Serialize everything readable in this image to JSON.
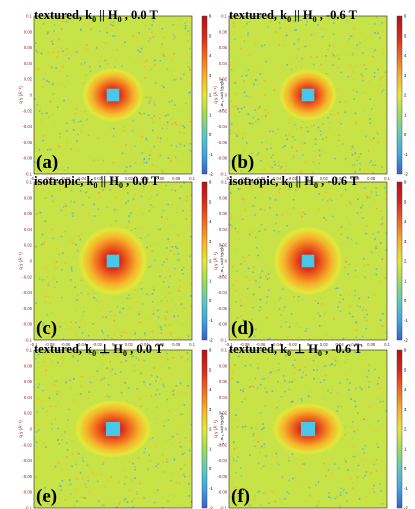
{
  "chart_data": [
    {
      "type": "heatmap",
      "panel_label": "(a)",
      "title": {
        "prefix": "textured, k",
        "sub": "0",
        "relation": "||",
        "field": "H",
        "field_sub": "0",
        "suffix": ", 0.0 T"
      },
      "xlabel": "q x (Å⁻¹)",
      "ylabel": "q y (Å⁻¹)",
      "colorbar_label": "ln(Σ/Ω) (cm⁻¹ sr⁻¹)",
      "x_ticks": [
        "-0.1",
        "-0.08",
        "-0.06",
        "-0.04",
        "-0.02",
        "0",
        "0.02",
        "0.04",
        "0.06",
        "0.08",
        "0.1"
      ],
      "y_ticks": [
        "0.1",
        "0.08",
        "0.06",
        "0.04",
        "0.02",
        "0",
        "-0.02",
        "-0.04",
        "-0.06",
        "-0.08",
        "-0.1"
      ],
      "colorbar_ticks": [
        "6",
        "5",
        "4",
        "3",
        "2",
        "1",
        "0",
        "-1",
        "-2"
      ],
      "xlim": [
        -0.1,
        0.1
      ],
      "ylim": [
        -0.1,
        0.1
      ],
      "clim": [
        -2,
        6
      ],
      "peak_half_width": [
        0.032,
        0.028
      ],
      "beamstop_half_width": 0.008
    },
    {
      "type": "heatmap",
      "panel_label": "(b)",
      "title": {
        "prefix": "textured, k",
        "sub": "0",
        "relation": "||",
        "field": "H",
        "field_sub": "0",
        "suffix": ", -0.6 T"
      },
      "xlabel": "q x (Å⁻¹)",
      "ylabel": "q y (Å⁻¹)",
      "colorbar_label": "ln(Σ/Ω) (cm⁻¹ sr⁻¹)",
      "x_ticks": [
        "-0.1",
        "-0.08",
        "-0.06",
        "-0.04",
        "-0.02",
        "0",
        "0.02",
        "0.04",
        "0.06",
        "0.08",
        "0.1"
      ],
      "y_ticks": [
        "0.1",
        "0.08",
        "0.06",
        "0.04",
        "0.02",
        "0",
        "-0.02",
        "-0.04",
        "-0.06",
        "-0.08",
        "-0.1"
      ],
      "colorbar_ticks": [
        "6",
        "5",
        "4",
        "3",
        "2",
        "1",
        "0",
        "-1",
        "-2"
      ],
      "xlim": [
        -0.1,
        0.1
      ],
      "ylim": [
        -0.1,
        0.1
      ],
      "clim": [
        -2,
        6
      ],
      "peak_half_width": [
        0.03,
        0.027
      ],
      "beamstop_half_width": 0.008
    },
    {
      "type": "heatmap",
      "panel_label": "(c)",
      "title": {
        "prefix": "isotropic, k",
        "sub": "0",
        "relation": "||",
        "field": "H",
        "field_sub": "0",
        "suffix": ", 0.0 T"
      },
      "xlabel": "q x (Å⁻¹)",
      "ylabel": "q y (Å⁻¹)",
      "colorbar_label": "ln(Σ/Ω) (cm⁻¹ sr⁻¹)",
      "x_ticks": [
        "-0.1",
        "-0.08",
        "-0.06",
        "-0.04",
        "-0.02",
        "0",
        "0.02",
        "0.04",
        "0.06",
        "0.08",
        "0.1"
      ],
      "y_ticks": [
        "0.1",
        "0.08",
        "0.06",
        "0.04",
        "0.02",
        "0",
        "-0.02",
        "-0.04",
        "-0.06",
        "-0.08",
        "-0.1"
      ],
      "colorbar_ticks": [
        "6",
        "5",
        "4",
        "3",
        "2",
        "1",
        "0",
        "-1",
        "-2"
      ],
      "xlim": [
        -0.1,
        0.1
      ],
      "ylim": [
        -0.1,
        0.1
      ],
      "clim": [
        -2,
        6
      ],
      "peak_half_width": [
        0.036,
        0.036
      ],
      "beamstop_half_width": 0.008
    },
    {
      "type": "heatmap",
      "panel_label": "(d)",
      "title": {
        "prefix": "isotropic, k",
        "sub": "0",
        "relation": "||",
        "field": "H",
        "field_sub": "0",
        "suffix": ", -0.6 T"
      },
      "xlabel": "q x (Å⁻¹)",
      "ylabel": "q y (Å⁻¹)",
      "colorbar_label": "ln(Σ/Ω) (cm⁻¹ sr⁻¹)",
      "x_ticks": [
        "-0.1",
        "-0.08",
        "-0.06",
        "-0.04",
        "-0.02",
        "0",
        "0.02",
        "0.04",
        "0.06",
        "0.08",
        "0.1"
      ],
      "y_ticks": [
        "0.1",
        "0.08",
        "0.06",
        "0.04",
        "0.02",
        "0",
        "-0.02",
        "-0.04",
        "-0.06",
        "-0.08",
        "-0.1"
      ],
      "colorbar_ticks": [
        "6",
        "5",
        "4",
        "3",
        "2",
        "1",
        "0",
        "-1",
        "-2"
      ],
      "xlim": [
        -0.1,
        0.1
      ],
      "ylim": [
        -0.1,
        0.1
      ],
      "clim": [
        -2,
        6
      ],
      "peak_half_width": [
        0.036,
        0.036
      ],
      "beamstop_half_width": 0.008
    },
    {
      "type": "heatmap",
      "panel_label": "(e)",
      "title": {
        "prefix": "textured, k",
        "sub": "0",
        "relation": "⊥",
        "field": "H",
        "field_sub": "0",
        "suffix": ", 0.0 T"
      },
      "xlabel": "q x (Å⁻¹)",
      "ylabel": "q y (Å⁻¹)",
      "colorbar_label": "ln(Σ/Ω) (cm⁻¹ sr⁻¹)",
      "x_ticks": [
        "-0.1",
        "-0.08",
        "-0.06",
        "-0.04",
        "-0.02",
        "0",
        "0.02",
        "0.04",
        "0.06",
        "0.08",
        "0.1"
      ],
      "y_ticks": [
        "0.1",
        "0.08",
        "0.06",
        "0.04",
        "0.02",
        "0",
        "-0.02",
        "-0.04",
        "-0.06",
        "-0.08",
        "-0.1"
      ],
      "colorbar_ticks": [
        "6",
        "5",
        "4",
        "3",
        "2",
        "1",
        "0",
        "-1",
        "-2"
      ],
      "xlim": [
        -0.1,
        0.1
      ],
      "ylim": [
        -0.1,
        0.1
      ],
      "clim": [
        -2,
        6
      ],
      "peak_half_width": [
        0.04,
        0.03
      ],
      "beamstop_half_width": 0.009
    },
    {
      "type": "heatmap",
      "panel_label": "(f)",
      "title": {
        "prefix": "textured, k",
        "sub": "0",
        "relation": "⊥",
        "field": "H",
        "field_sub": "0",
        "suffix": ", -0.6 T"
      },
      "xlabel": "q x (Å⁻¹)",
      "ylabel": "q y (Å⁻¹)",
      "colorbar_label": "ln(Σ/Ω) (cm⁻¹ sr⁻¹)",
      "x_ticks": [
        "-0.1",
        "-0.08",
        "-0.06",
        "-0.04",
        "-0.02",
        "0",
        "0.02",
        "0.04",
        "0.06",
        "0.08",
        "0.1"
      ],
      "y_ticks": [
        "0.1",
        "0.08",
        "0.06",
        "0.04",
        "0.02",
        "0",
        "-0.02",
        "-0.04",
        "-0.06",
        "-0.08",
        "-0.1"
      ],
      "colorbar_ticks": [
        "6",
        "5",
        "4",
        "3",
        "2",
        "1",
        "0",
        "-1",
        "-2"
      ],
      "xlim": [
        -0.1,
        0.1
      ],
      "ylim": [
        -0.1,
        0.1
      ],
      "clim": [
        -2,
        6
      ],
      "peak_half_width": [
        0.037,
        0.027
      ],
      "beamstop_half_width": 0.009
    }
  ],
  "colors": {
    "colormap": [
      "#3a5fd0",
      "#3fa7e0",
      "#5ec9c0",
      "#9edc5a",
      "#e4e83a",
      "#f6b12c",
      "#ef6a1e",
      "#d8281a",
      "#b5121b"
    ],
    "beamstop": "#48c8e8",
    "tick_text": "#8b1a1a"
  }
}
